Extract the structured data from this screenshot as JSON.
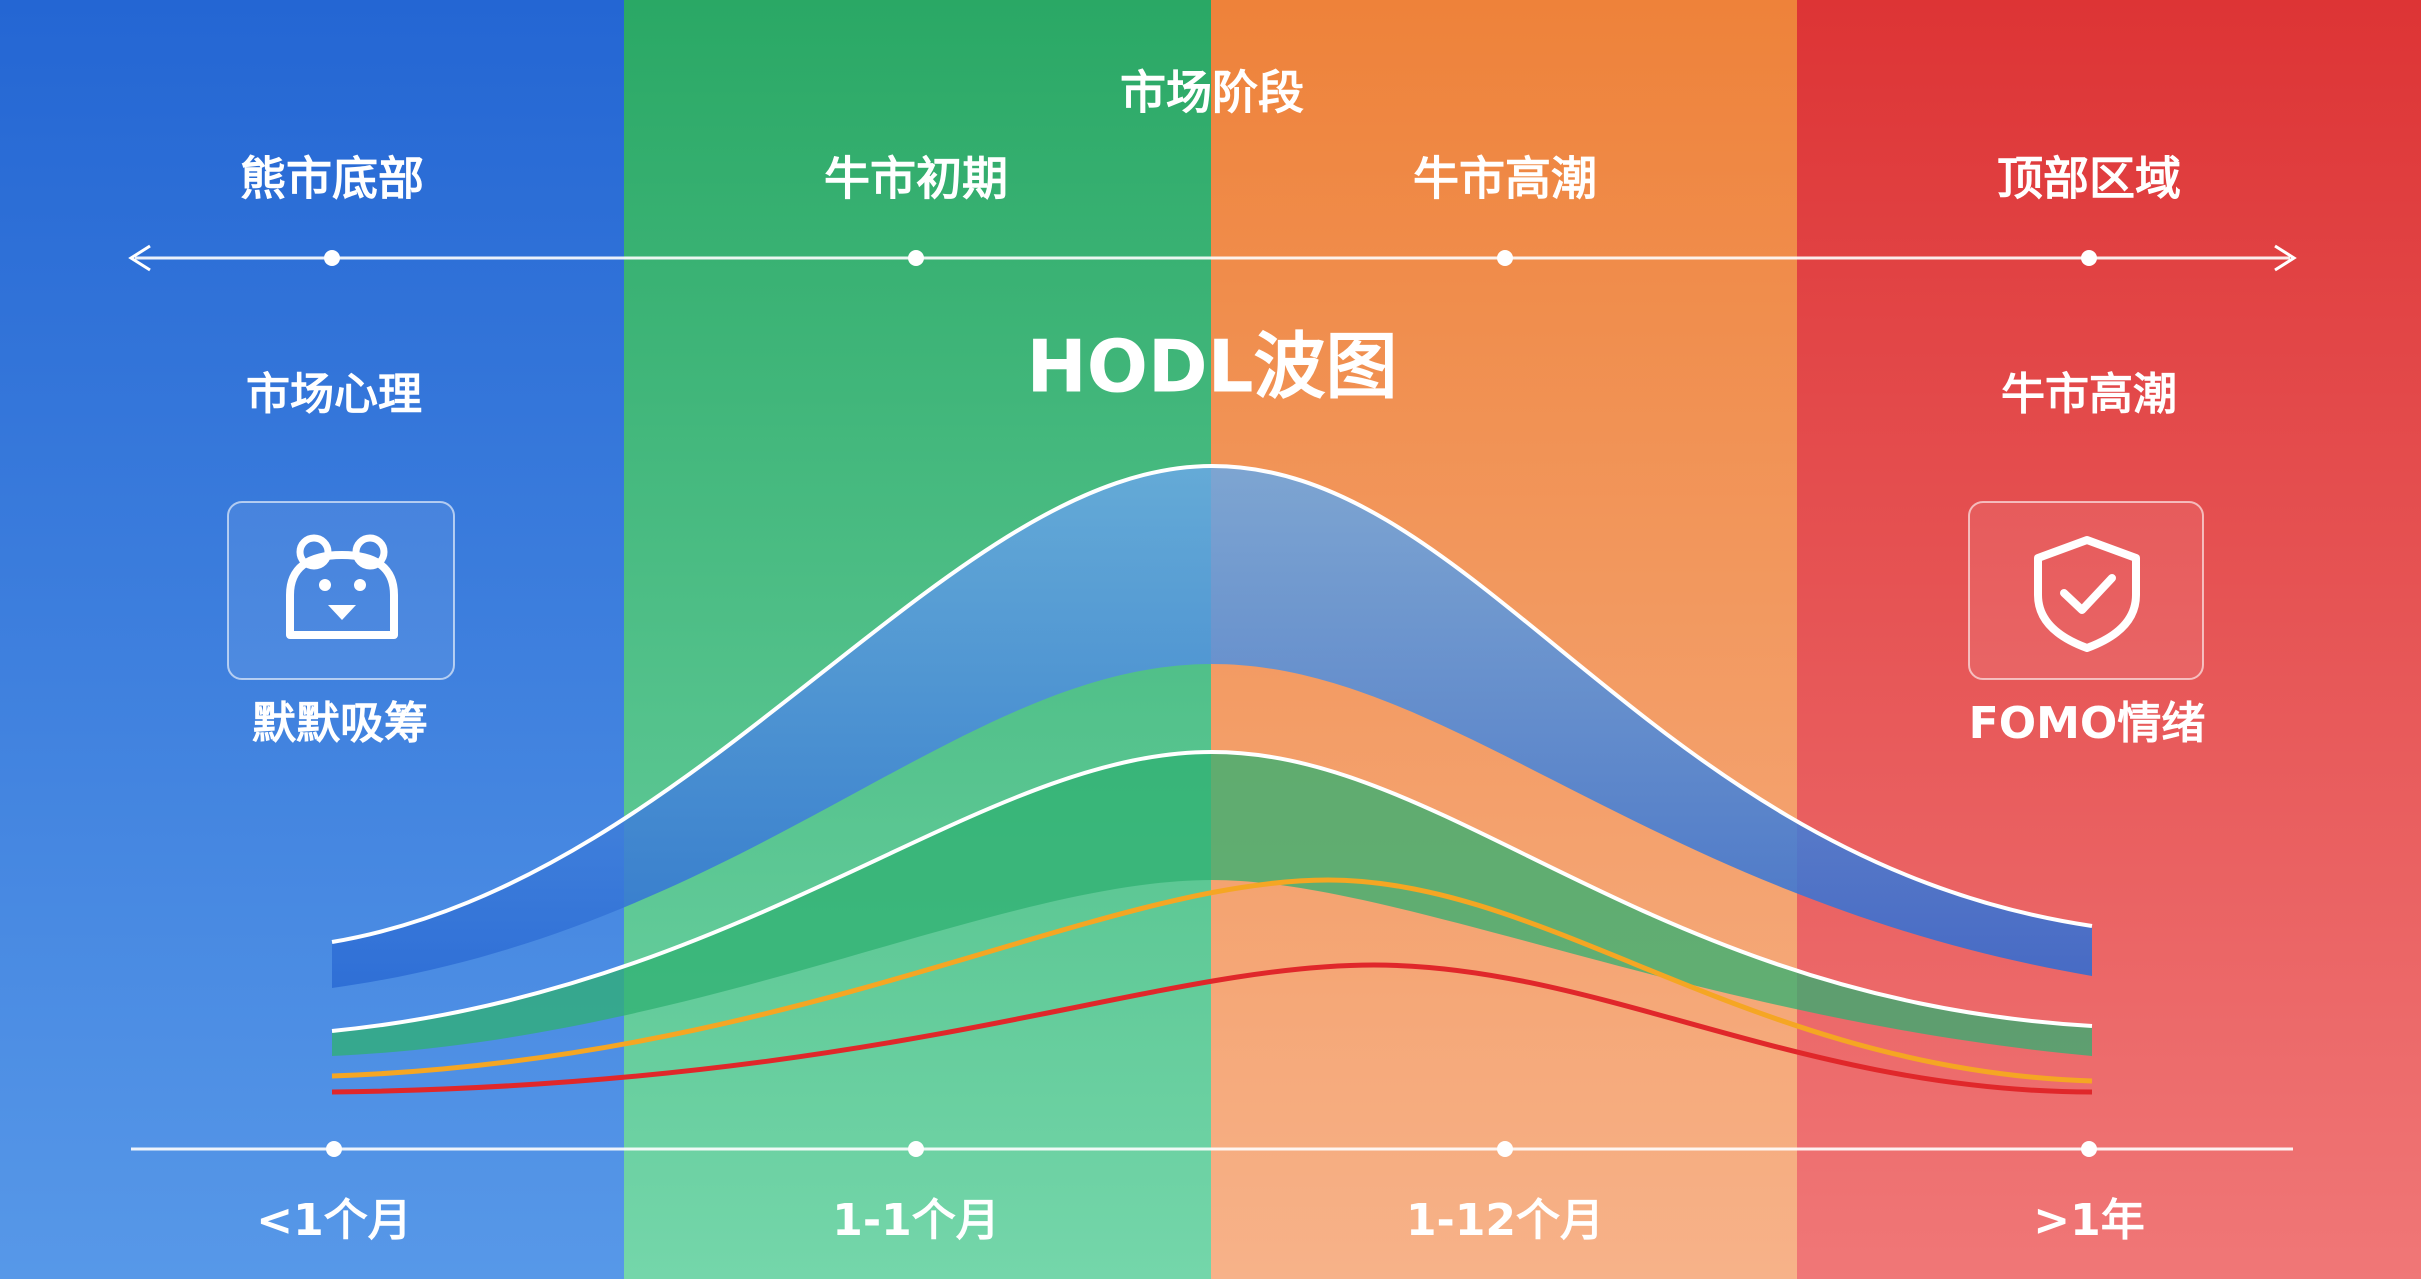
{
  "header": {
    "title": "市场阶段"
  },
  "stages": [
    "熊市底部",
    "牛市初期",
    "牛市高潮",
    "顶部区域"
  ],
  "chart_title": "HODL波图",
  "left_panel": {
    "heading": "市场心理",
    "caption": "默默吸筹"
  },
  "right_panel": {
    "heading": "牛市高潮",
    "caption": "FOMO情绪"
  },
  "age_bands": [
    "<1个月",
    "1-1个月",
    "1-12个月",
    ">1年"
  ]
}
